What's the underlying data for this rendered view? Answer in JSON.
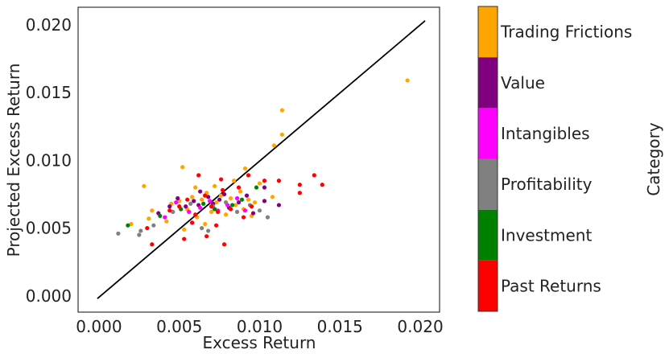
{
  "chart_data": {
    "type": "scatter",
    "xlabel": "Excess Return",
    "ylabel": "Projected Excess Return",
    "xlim": [
      -0.0013,
      0.0212
    ],
    "ylim": [
      -0.0012,
      0.0213
    ],
    "xticks": [
      0.0,
      0.005,
      0.01,
      0.015,
      0.02
    ],
    "xtick_labels": [
      "0.000",
      "0.005",
      "0.010",
      "0.015",
      "0.020"
    ],
    "yticks": [
      0.0,
      0.005,
      0.01,
      0.015,
      0.02
    ],
    "ytick_labels": [
      "0.000",
      "0.005",
      "0.010",
      "0.015",
      "0.020"
    ],
    "grid": false,
    "reference_line": {
      "x": [
        -0.0001,
        0.0203
      ],
      "y": [
        -0.0002,
        0.0203
      ],
      "color": "#000000"
    },
    "colorbar": {
      "label": "Category",
      "categories": [
        "Past Returns",
        "Investment",
        "Profitability",
        "Intangibles",
        "Value",
        "Trading Frictions"
      ],
      "colors": [
        "#ff0000",
        "#008000",
        "#808080",
        "#ff00ff",
        "#800080",
        "#ffa500"
      ]
    },
    "series": [
      {
        "category": "Trading Frictions",
        "color": "#ffa500",
        "points": [
          [
            0.0192,
            0.0159
          ],
          [
            0.0114,
            0.0137
          ],
          [
            0.0114,
            0.0119
          ],
          [
            0.0109,
            0.0111
          ],
          [
            0.0091,
            0.0094
          ],
          [
            0.0052,
            0.0095
          ],
          [
            0.0028,
            0.0081
          ],
          [
            0.002,
            0.0053
          ],
          [
            0.0031,
            0.0057
          ],
          [
            0.0033,
            0.0063
          ],
          [
            0.0042,
            0.0055
          ],
          [
            0.0045,
            0.0068
          ],
          [
            0.005,
            0.007
          ],
          [
            0.0055,
            0.0064
          ],
          [
            0.0058,
            0.0073
          ],
          [
            0.0061,
            0.0058
          ],
          [
            0.0064,
            0.0071
          ],
          [
            0.0067,
            0.0076
          ],
          [
            0.007,
            0.0062
          ],
          [
            0.0073,
            0.0069
          ],
          [
            0.0076,
            0.0074
          ],
          [
            0.0079,
            0.006
          ],
          [
            0.0082,
            0.0072
          ],
          [
            0.0085,
            0.0067
          ],
          [
            0.0088,
            0.0077
          ],
          [
            0.009,
            0.0064
          ],
          [
            0.0093,
            0.0071
          ],
          [
            0.0097,
            0.0069
          ],
          [
            0.01,
            0.0083
          ],
          [
            0.0108,
            0.0073
          ],
          [
            0.0053,
            0.0049
          ],
          [
            0.0066,
            0.0053
          ],
          [
            0.0072,
            0.0081
          ],
          [
            0.0084,
            0.0085
          ],
          [
            0.0095,
            0.0059
          ],
          [
            0.006,
            0.008
          ]
        ]
      },
      {
        "category": "Value",
        "color": "#800080",
        "points": [
          [
            0.0037,
            0.0061
          ],
          [
            0.0044,
            0.0066
          ],
          [
            0.0049,
            0.0072
          ],
          [
            0.0054,
            0.0066
          ],
          [
            0.0059,
            0.007
          ],
          [
            0.0062,
            0.0067
          ],
          [
            0.0068,
            0.0073
          ],
          [
            0.0071,
            0.0068
          ],
          [
            0.0075,
            0.0071
          ],
          [
            0.0078,
            0.0075
          ],
          [
            0.0081,
            0.0065
          ],
          [
            0.0087,
            0.0069
          ],
          [
            0.0092,
            0.0074
          ],
          [
            0.0096,
            0.0061
          ],
          [
            0.0103,
            0.007
          ],
          [
            0.0112,
            0.0067
          ],
          [
            0.0103,
            0.008
          ],
          [
            0.0063,
            0.0077
          ]
        ]
      },
      {
        "category": "Intangibles",
        "color": "#ff00ff",
        "points": [
          [
            0.0041,
            0.0058
          ],
          [
            0.0048,
            0.0069
          ],
          [
            0.0056,
            0.0062
          ],
          [
            0.0063,
            0.0065
          ],
          [
            0.0069,
            0.007
          ],
          [
            0.0074,
            0.0063
          ],
          [
            0.008,
            0.0067
          ],
          [
            0.0086,
            0.0072
          ],
          [
            0.0091,
            0.0063
          ],
          [
            0.0058,
            0.0054
          ]
        ]
      },
      {
        "category": "Profitability",
        "color": "#808080",
        "points": [
          [
            0.0012,
            0.0046
          ],
          [
            0.0025,
            0.0045
          ],
          [
            0.0026,
            0.0048
          ],
          [
            0.0034,
            0.0052
          ],
          [
            0.0046,
            0.0062
          ],
          [
            0.0057,
            0.0068
          ],
          [
            0.0064,
            0.005
          ],
          [
            0.0071,
            0.0066
          ],
          [
            0.0079,
            0.0069
          ],
          [
            0.0086,
            0.0062
          ],
          [
            0.0094,
            0.0067
          ],
          [
            0.01,
            0.0063
          ],
          [
            0.0105,
            0.0058
          ],
          [
            0.0068,
            0.0048
          ]
        ]
      },
      {
        "category": "Investment",
        "color": "#008000",
        "points": [
          [
            0.0018,
            0.0052
          ],
          [
            0.0038,
            0.0059
          ],
          [
            0.0051,
            0.0064
          ],
          [
            0.0065,
            0.0068
          ],
          [
            0.0072,
            0.0064
          ],
          [
            0.0083,
            0.0067
          ],
          [
            0.0089,
            0.0071
          ],
          [
            0.0098,
            0.008
          ]
        ]
      },
      {
        "category": "Past Returns",
        "color": "#ff0000",
        "points": [
          [
            0.0134,
            0.0089
          ],
          [
            0.0139,
            0.0082
          ],
          [
            0.0125,
            0.0082
          ],
          [
            0.0125,
            0.0076
          ],
          [
            0.0112,
            0.0085
          ],
          [
            0.0103,
            0.0085
          ],
          [
            0.0093,
            0.0089
          ],
          [
            0.0076,
            0.0086
          ],
          [
            0.0062,
            0.0089
          ],
          [
            0.003,
            0.005
          ],
          [
            0.0033,
            0.0038
          ],
          [
            0.0053,
            0.0042
          ],
          [
            0.0058,
            0.0054
          ],
          [
            0.0067,
            0.0044
          ],
          [
            0.0073,
            0.0052
          ],
          [
            0.0078,
            0.0038
          ],
          [
            0.009,
            0.0058
          ],
          [
            0.0044,
            0.0063
          ],
          [
            0.005,
            0.0066
          ],
          [
            0.0055,
            0.0071
          ],
          [
            0.006,
            0.006
          ],
          [
            0.0066,
            0.0074
          ],
          [
            0.007,
            0.0066
          ],
          [
            0.0077,
            0.0078
          ],
          [
            0.0082,
            0.0064
          ],
          [
            0.0087,
            0.008
          ],
          [
            0.0095,
            0.0066
          ],
          [
            0.0074,
            0.0062
          ]
        ]
      }
    ]
  }
}
